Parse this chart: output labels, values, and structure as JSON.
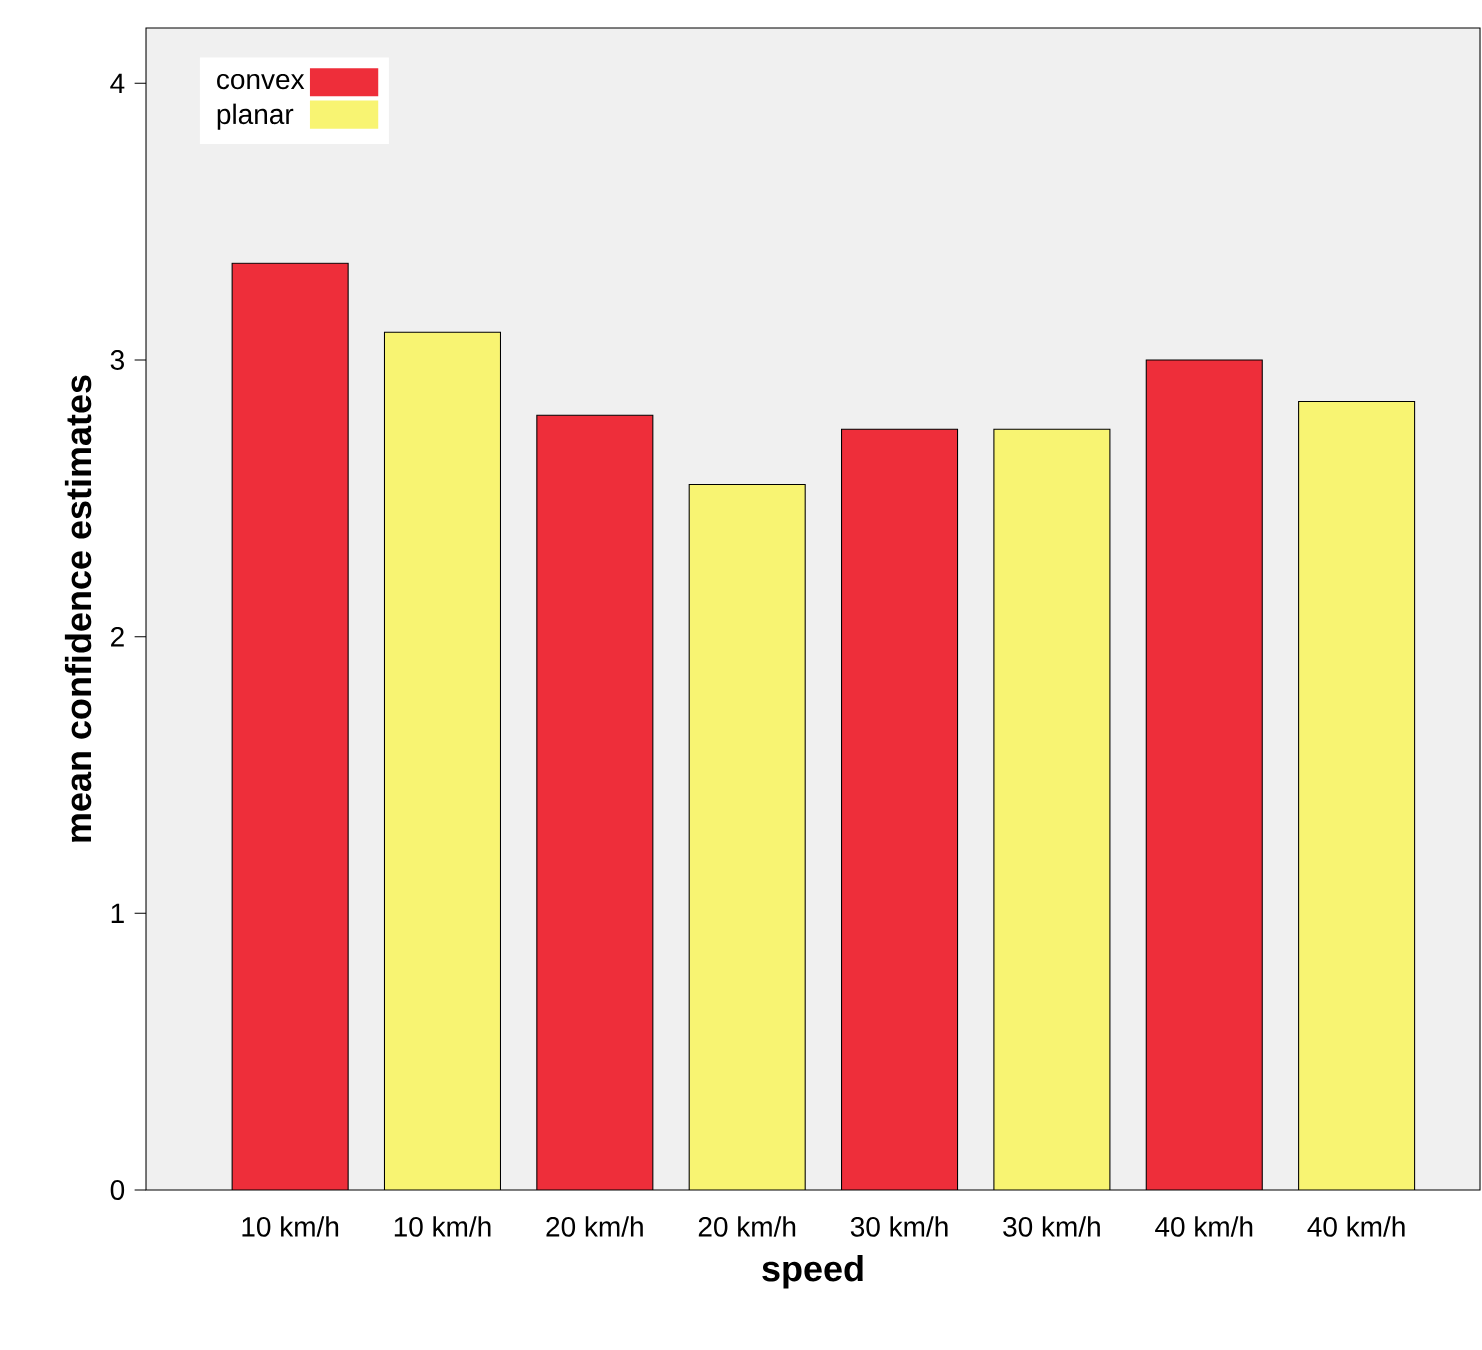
{
  "chart_data": {
    "type": "bar",
    "xlabel": "speed",
    "ylabel": "mean confidence estimates",
    "categories": [
      "10 km/h",
      "10 km/h",
      "20 km/h",
      "20 km/h",
      "30 km/h",
      "30 km/h",
      "40 km/h",
      "40 km/h"
    ],
    "series": [
      {
        "name": "convex",
        "color": "#ee2e3a",
        "values": [
          3.35,
          null,
          2.8,
          null,
          2.75,
          null,
          3.0,
          null
        ]
      },
      {
        "name": "planar",
        "color": "#f8f472",
        "values": [
          null,
          3.1,
          null,
          2.55,
          null,
          2.75,
          null,
          2.85
        ]
      }
    ],
    "ylim": [
      0,
      4.2
    ],
    "yticks": [
      0,
      1,
      2,
      3,
      4
    ],
    "legend": "top left"
  }
}
